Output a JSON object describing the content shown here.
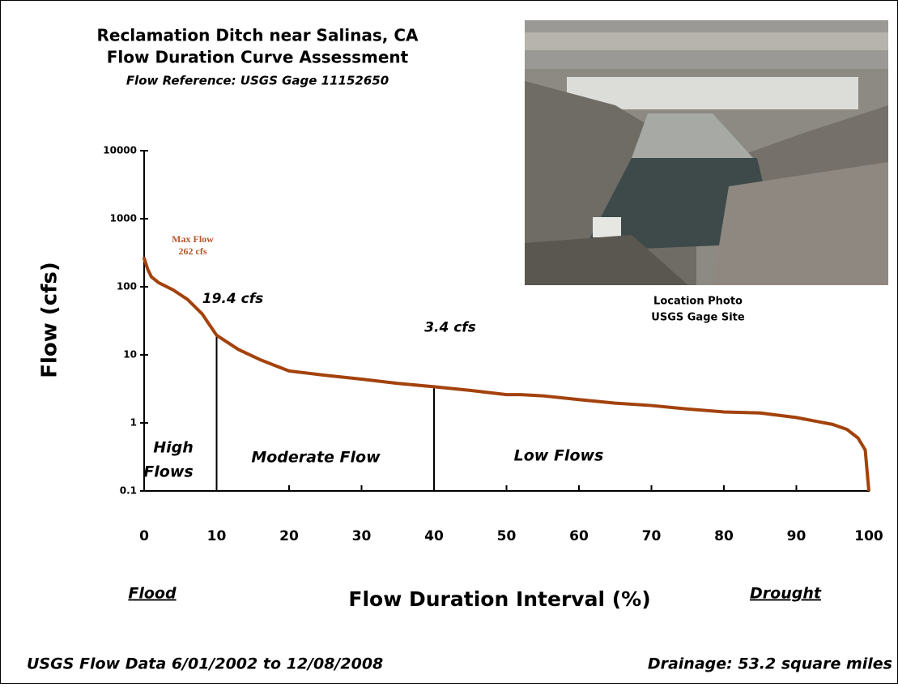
{
  "chart_data": {
    "type": "line",
    "title": [
      "Reclamation Ditch near Salinas, CA",
      "Flow Duration Curve Assessment"
    ],
    "subtitle": "Flow Reference: USGS Gage  11152650",
    "x_label": "Flow Duration Interval (%)",
    "y_label": "Flow (cfs)",
    "x_left_note": "Flood",
    "x_right_note": "Drought",
    "footer_left": "USGS Flow Data 6/01/2002 to 12/08/2008",
    "footer_right": "Drainage: 53.2 square miles",
    "photo_caption": [
      "Location Photo",
      "USGS Gage Site"
    ],
    "log_y": true,
    "color": "#a3420c",
    "x": [
      0,
      0.5,
      1,
      2,
      4,
      6,
      8,
      10,
      13,
      16,
      18,
      20,
      25,
      30,
      35,
      40,
      45,
      50,
      52,
      55,
      60,
      65,
      70,
      75,
      80,
      85,
      90,
      95,
      97,
      98.5,
      99.5,
      100
    ],
    "values": [
      262,
      180,
      140,
      115,
      90,
      65,
      40,
      19.4,
      12,
      8.5,
      7,
      5.8,
      5,
      4.4,
      3.8,
      3.4,
      3,
      2.6,
      2.6,
      2.5,
      2.2,
      1.95,
      1.8,
      1.6,
      1.45,
      1.4,
      1.2,
      0.95,
      0.8,
      0.6,
      0.4,
      0.1
    ],
    "xlim": [
      0,
      100
    ],
    "ylim": [
      0.1,
      10000
    ],
    "xticks": [
      0,
      10,
      20,
      30,
      40,
      50,
      60,
      70,
      80,
      90,
      100
    ],
    "yticks": [
      0.1,
      1,
      10,
      100,
      1000,
      10000
    ],
    "max_flow": {
      "lines": [
        "Max Flow",
        "262 cfs"
      ],
      "x": 0,
      "y": 262
    },
    "drop_lines": [
      {
        "text": "19.4 cfs",
        "x": 10,
        "y": 19.4
      },
      {
        "text": "3.4 cfs",
        "x": 40,
        "y": 3.4
      }
    ],
    "zones": [
      {
        "lines": [
          "High",
          "Flows"
        ]
      },
      {
        "lines": [
          "Moderate Flow"
        ]
      },
      {
        "lines": [
          "Low Flows"
        ]
      }
    ]
  }
}
